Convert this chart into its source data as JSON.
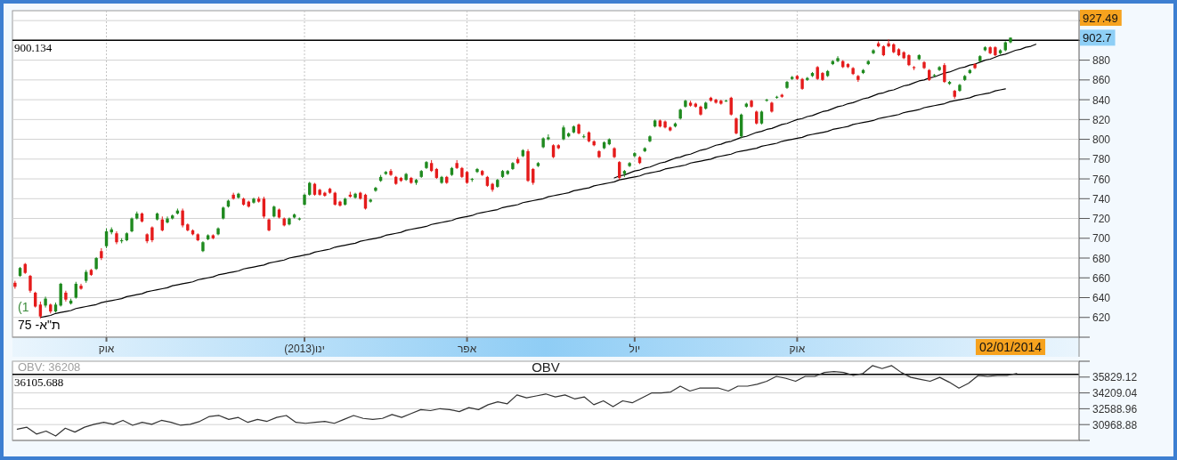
{
  "chart_data": [
    {
      "type": "candlestick",
      "grid": true,
      "ylim": [
        600,
        930
      ],
      "yticks": [
        {
          "value": 600,
          "label": null
        },
        620,
        640,
        660,
        680,
        700,
        720,
        740,
        760,
        780,
        800,
        820,
        840,
        860,
        880,
        {
          "value": 900,
          "label": null
        },
        {
          "value": 920,
          "label": null
        }
      ],
      "categories": [
        null,
        null,
        null,
        null,
        null,
        null,
        null,
        null,
        null,
        null,
        null,
        null,
        null,
        null,
        null,
        null,
        null,
        null,
        "אוק",
        null,
        null,
        null,
        null,
        null,
        null,
        null,
        null,
        null,
        null,
        null,
        null,
        null,
        null,
        null,
        null,
        null,
        null,
        null,
        null,
        null,
        null,
        null,
        null,
        null,
        null,
        null,
        null,
        null,
        null,
        null,
        null,
        null,
        null,
        null,
        null,
        null,
        null,
        "(2013)ינו",
        null,
        null,
        null,
        null,
        null,
        null,
        null,
        null,
        null,
        null,
        null,
        null,
        null,
        null,
        null,
        null,
        null,
        null,
        null,
        null,
        null,
        null,
        null,
        null,
        null,
        null,
        null,
        null,
        null,
        null,
        null,
        "אפר",
        null,
        null,
        null,
        null,
        null,
        null,
        null,
        null,
        null,
        null,
        null,
        null,
        null,
        null,
        null,
        null,
        null,
        null,
        null,
        null,
        null,
        null,
        null,
        null,
        null,
        null,
        null,
        null,
        null,
        null,
        null,
        null,
        "יול",
        null,
        null,
        null,
        null,
        null,
        null,
        null,
        null,
        null,
        null,
        null,
        null,
        null,
        null,
        null,
        null,
        null,
        null,
        null,
        null,
        null,
        null,
        null,
        null,
        null,
        null,
        null,
        null,
        null,
        null,
        null,
        "אוק",
        null,
        null,
        null,
        null,
        null,
        null,
        null,
        null,
        null,
        null,
        null,
        null,
        null,
        null,
        null,
        null,
        null,
        null,
        null,
        null,
        null,
        null,
        null,
        null,
        null,
        null,
        null,
        null,
        null,
        null,
        null,
        null,
        null,
        null,
        null,
        null,
        null,
        null,
        null,
        null,
        null,
        null,
        null,
        null,
        null,
        null,
        null,
        null,
        null,
        null,
        null,
        null,
        null,
        null,
        null
      ],
      "ohlc": [
        [
          655,
          657,
          649,
          651
        ],
        [
          662,
          671,
          661,
          670
        ],
        [
          674,
          675,
          664,
          665
        ],
        [
          662,
          663,
          645,
          647
        ],
        [
          645,
          646,
          630,
          631
        ],
        [
          633,
          636,
          619,
          621
        ],
        [
          632,
          641,
          630,
          639
        ],
        [
          633,
          634,
          624,
          626
        ],
        [
          626,
          635,
          625,
          633
        ],
        [
          632,
          655,
          631,
          654
        ],
        [
          645,
          647,
          636,
          638
        ],
        [
          634,
          639,
          633,
          637
        ],
        [
          640,
          656,
          639,
          654
        ],
        [
          652,
          654,
          648,
          649
        ],
        [
          657,
          668,
          655,
          666
        ],
        [
          668,
          669,
          662,
          663
        ],
        [
          669,
          681,
          668,
          680
        ],
        [
          687,
          690,
          678,
          680
        ],
        [
          692,
          710,
          690,
          707
        ],
        [
          706,
          711,
          704,
          709
        ],
        [
          705,
          707,
          694,
          696
        ],
        [
          697,
          700,
          695,
          698
        ],
        [
          698,
          706,
          697,
          705
        ],
        [
          707,
          721,
          706,
          720
        ],
        [
          720,
          727,
          719,
          725
        ],
        [
          725,
          726,
          716,
          717
        ],
        [
          704,
          705,
          695,
          697
        ],
        [
          711,
          712,
          696,
          698
        ],
        [
          719,
          726,
          718,
          725
        ],
        [
          719,
          722,
          707,
          708
        ],
        [
          716,
          722,
          715,
          720
        ],
        [
          720,
          724,
          719,
          723
        ],
        [
          725,
          730,
          724,
          728
        ],
        [
          728,
          730,
          711,
          713
        ],
        [
          714,
          715,
          707,
          708
        ],
        [
          708,
          709,
          703,
          704
        ],
        [
          704,
          705,
          697,
          698
        ],
        [
          687,
          697,
          686,
          696
        ],
        [
          699,
          704,
          698,
          703
        ],
        [
          703,
          704,
          699,
          700
        ],
        [
          704,
          711,
          703,
          710
        ],
        [
          720,
          732,
          719,
          731
        ],
        [
          732,
          739,
          731,
          738
        ],
        [
          744,
          746,
          739,
          740
        ],
        [
          741,
          746,
          740,
          745
        ],
        [
          740,
          741,
          733,
          734
        ],
        [
          737,
          738,
          731,
          732
        ],
        [
          736,
          741,
          735,
          740
        ],
        [
          740,
          742,
          736,
          737
        ],
        [
          740,
          742,
          720,
          722
        ],
        [
          719,
          720,
          707,
          708
        ],
        [
          722,
          733,
          721,
          732
        ],
        [
          729,
          730,
          720,
          721
        ],
        [
          720,
          721,
          712,
          713
        ],
        [
          714,
          721,
          713,
          720
        ],
        [
          721,
          725,
          720,
          724
        ],
        [
          719,
          721,
          718,
          720
        ],
        [
          734,
          745,
          733,
          744
        ],
        [
          744,
          757,
          743,
          756
        ],
        [
          755,
          756,
          743,
          744
        ],
        [
          749,
          750,
          743,
          744
        ],
        [
          746,
          747,
          742,
          743
        ],
        [
          750,
          751,
          745,
          746
        ],
        [
          746,
          747,
          733,
          734
        ],
        [
          737,
          738,
          732,
          733
        ],
        [
          734,
          741,
          733,
          740
        ],
        [
          744,
          747,
          741,
          742
        ],
        [
          741,
          746,
          740,
          745
        ],
        [
          746,
          747,
          739,
          740
        ],
        [
          744,
          745,
          729,
          730
        ],
        [
          737,
          740,
          736,
          739
        ],
        [
          748,
          752,
          747,
          751
        ],
        [
          758,
          764,
          757,
          762
        ],
        [
          765,
          768,
          764,
          767
        ],
        [
          768,
          770,
          763,
          764
        ],
        [
          762,
          763,
          754,
          755
        ],
        [
          761,
          762,
          757,
          758
        ],
        [
          759,
          766,
          758,
          765
        ],
        [
          761,
          762,
          755,
          756
        ],
        [
          756,
          760,
          754,
          759
        ],
        [
          762,
          769,
          761,
          768
        ],
        [
          771,
          778,
          770,
          777
        ],
        [
          776,
          779,
          767,
          768
        ],
        [
          770,
          771,
          760,
          761
        ],
        [
          756,
          763,
          755,
          762
        ],
        [
          762,
          763,
          755,
          756
        ],
        [
          764,
          772,
          763,
          771
        ],
        [
          776,
          779,
          770,
          771
        ],
        [
          771,
          772,
          761,
          762
        ],
        [
          767,
          768,
          755,
          756
        ],
        [
          759,
          761,
          757,
          760
        ],
        [
          767,
          771,
          766,
          770
        ],
        [
          768,
          769,
          763,
          764
        ],
        [
          762,
          763,
          752,
          753
        ],
        [
          755,
          756,
          747,
          749
        ],
        [
          752,
          760,
          751,
          759
        ],
        [
          762,
          769,
          761,
          768
        ],
        [
          765,
          769,
          764,
          768
        ],
        [
          770,
          777,
          769,
          776
        ],
        [
          780,
          782,
          775,
          776
        ],
        [
          783,
          790,
          782,
          789
        ],
        [
          788,
          790,
          757,
          758
        ],
        [
          770,
          771,
          754,
          756
        ],
        [
          773,
          777,
          772,
          776
        ],
        [
          792,
          802,
          791,
          801
        ],
        [
          800,
          805,
          799,
          802
        ],
        [
          794,
          795,
          781,
          782
        ],
        [
          794,
          795,
          790,
          791
        ],
        [
          800,
          814,
          799,
          812
        ],
        [
          803,
          807,
          802,
          806
        ],
        [
          807,
          814,
          806,
          813
        ],
        [
          815,
          816,
          805,
          806
        ],
        [
          803,
          805,
          801,
          803
        ],
        [
          807,
          808,
          797,
          798
        ],
        [
          798,
          799,
          793,
          794
        ],
        [
          788,
          789,
          781,
          782
        ],
        [
          791,
          798,
          790,
          797
        ],
        [
          795,
          801,
          794,
          800
        ],
        [
          791,
          792,
          781,
          782
        ],
        [
          777,
          778,
          759,
          761
        ],
        [
          765,
          769,
          762,
          768
        ],
        [
          773,
          777,
          772,
          776
        ],
        [
          783,
          787,
          782,
          786
        ],
        [
          782,
          783,
          775,
          776
        ],
        [
          788,
          792,
          787,
          791
        ],
        [
          798,
          804,
          797,
          803
        ],
        [
          813,
          820,
          812,
          819
        ],
        [
          819,
          820,
          812,
          813
        ],
        [
          818,
          819,
          811,
          812
        ],
        [
          812,
          813,
          808,
          809
        ],
        [
          813,
          817,
          812,
          816
        ],
        [
          821,
          831,
          820,
          830
        ],
        [
          833,
          840,
          832,
          839
        ],
        [
          837,
          839,
          833,
          834
        ],
        [
          836,
          837,
          832,
          833
        ],
        [
          833,
          834,
          824,
          825
        ],
        [
          831,
          838,
          830,
          837
        ],
        [
          842,
          843,
          838,
          839
        ],
        [
          840,
          841,
          836,
          837
        ],
        [
          839,
          840,
          835,
          836
        ],
        [
          839,
          840,
          838,
          839
        ],
        [
          842,
          843,
          824,
          825
        ],
        [
          821,
          822,
          805,
          806
        ],
        [
          803,
          826,
          801,
          825
        ],
        [
          833,
          837,
          832,
          836
        ],
        [
          839,
          840,
          832,
          833
        ],
        [
          828,
          829,
          815,
          816
        ],
        [
          816,
          829,
          815,
          828
        ],
        [
          839,
          841,
          838,
          840
        ],
        [
          837,
          838,
          827,
          828
        ],
        [
          842,
          844,
          841,
          843
        ],
        [
          845,
          846,
          842,
          843
        ],
        [
          852,
          859,
          851,
          858
        ],
        [
          861,
          864,
          860,
          863
        ],
        [
          864,
          865,
          860,
          861
        ],
        [
          861,
          862,
          850,
          851
        ],
        [
          860,
          863,
          859,
          862
        ],
        [
          864,
          868,
          863,
          867
        ],
        [
          873,
          874,
          860,
          861
        ],
        [
          867,
          868,
          859,
          860
        ],
        [
          864,
          870,
          863,
          869
        ],
        [
          876,
          880,
          875,
          879
        ],
        [
          879,
          884,
          878,
          882
        ],
        [
          879,
          880,
          872,
          873
        ],
        [
          876,
          877,
          872,
          873
        ],
        [
          872,
          873,
          865,
          866
        ],
        [
          864,
          865,
          858,
          860
        ],
        [
          867,
          871,
          866,
          870
        ],
        [
          876,
          880,
          875,
          879
        ],
        [
          887,
          891,
          886,
          890
        ],
        [
          897,
          899,
          893,
          894
        ],
        [
          894,
          895,
          884,
          885
        ],
        [
          897,
          901,
          893,
          894
        ],
        [
          896,
          897,
          887,
          888
        ],
        [
          891,
          892,
          884,
          885
        ],
        [
          888,
          889,
          881,
          882
        ],
        [
          885,
          886,
          874,
          875
        ],
        [
          873,
          874,
          870,
          872
        ],
        [
          881,
          886,
          880,
          885
        ],
        [
          878,
          879,
          871,
          872
        ],
        [
          870,
          871,
          859,
          860
        ],
        [
          864,
          866,
          863,
          865
        ],
        [
          870,
          874,
          869,
          873
        ],
        [
          875,
          877,
          857,
          858
        ],
        [
          856,
          859,
          855,
          858
        ],
        [
          849,
          850,
          841,
          843
        ],
        [
          849,
          856,
          848,
          855
        ],
        [
          860,
          865,
          859,
          864
        ],
        [
          867,
          871,
          866,
          870
        ],
        [
          876,
          877,
          871,
          872
        ],
        [
          879,
          885,
          878,
          884
        ],
        [
          890,
          894,
          889,
          893
        ],
        [
          893,
          894,
          886,
          887
        ],
        [
          893,
          894,
          884,
          885
        ],
        [
          887,
          891,
          886,
          890
        ],
        [
          890,
          899,
          889,
          898
        ],
        [
          898,
          903,
          897,
          902.7
        ],
        null,
        null,
        null,
        null,
        null,
        null,
        null,
        null,
        null,
        null,
        null,
        null,
        null
      ],
      "series": [
        {
          "type": "line",
          "color": "#000000",
          "values": [
            null,
            null,
            null,
            null,
            null,
            620,
            621,
            622,
            624,
            625,
            626,
            627,
            629,
            630,
            631,
            632,
            633,
            635,
            636,
            637,
            638,
            639,
            641,
            642,
            643,
            644,
            646,
            647,
            648,
            649,
            650,
            652,
            653,
            654,
            655,
            656,
            658,
            659,
            660,
            661,
            663,
            664,
            665,
            666,
            667,
            669,
            670,
            671,
            672,
            673,
            675,
            676,
            677,
            678,
            680,
            681,
            682,
            683,
            684,
            686,
            687,
            688,
            689,
            691,
            692,
            693,
            694,
            695,
            697,
            698,
            699,
            700,
            701,
            703,
            704,
            705,
            706,
            708,
            709,
            710,
            711,
            712,
            714,
            715,
            716,
            717,
            718,
            720,
            721,
            722,
            723,
            725,
            726,
            727,
            728,
            729,
            731,
            732,
            733,
            734,
            736,
            737,
            738,
            739,
            740,
            742,
            743,
            744,
            745,
            746,
            748,
            749,
            750,
            751,
            753,
            754,
            755,
            756,
            757,
            759,
            760,
            761,
            762,
            763,
            765,
            766,
            767,
            768,
            770,
            771,
            772,
            773,
            774,
            776,
            777,
            778,
            779,
            780,
            782,
            783,
            784,
            785,
            787,
            788,
            789,
            790,
            791,
            793,
            794,
            795,
            796,
            798,
            799,
            800,
            801,
            802,
            804,
            805,
            806,
            807,
            808,
            810,
            811,
            812,
            813,
            815,
            816,
            817,
            818,
            819,
            821,
            822,
            823,
            824,
            825,
            827,
            828,
            829,
            830,
            832,
            833,
            834,
            835,
            836,
            838,
            839,
            840,
            841,
            842,
            844,
            845,
            846,
            847,
            849,
            850,
            851,
            null,
            null,
            null,
            null,
            null,
            null,
            null,
            null,
            null,
            null,
            null,
            null,
            null,
            null
          ]
        },
        {
          "type": "line",
          "color": "#000000",
          "values": [
            null,
            null,
            null,
            null,
            null,
            null,
            null,
            null,
            null,
            null,
            null,
            null,
            null,
            null,
            null,
            null,
            null,
            null,
            null,
            null,
            null,
            null,
            null,
            null,
            null,
            null,
            null,
            null,
            null,
            null,
            null,
            null,
            null,
            null,
            null,
            null,
            null,
            null,
            null,
            null,
            null,
            null,
            null,
            null,
            null,
            null,
            null,
            null,
            null,
            null,
            null,
            null,
            null,
            null,
            null,
            null,
            null,
            null,
            null,
            null,
            null,
            null,
            null,
            null,
            null,
            null,
            null,
            null,
            null,
            null,
            null,
            null,
            null,
            null,
            null,
            null,
            null,
            null,
            null,
            null,
            null,
            null,
            null,
            null,
            null,
            null,
            null,
            null,
            null,
            null,
            null,
            null,
            null,
            null,
            null,
            null,
            null,
            null,
            null,
            null,
            null,
            null,
            null,
            null,
            null,
            null,
            null,
            null,
            null,
            null,
            null,
            null,
            null,
            null,
            null,
            null,
            null,
            null,
            761,
            763,
            764,
            766,
            768,
            769,
            771,
            772,
            774,
            776,
            777,
            779,
            781,
            782,
            784,
            785,
            787,
            789,
            790,
            792,
            794,
            795,
            797,
            798,
            800,
            802,
            803,
            805,
            807,
            808,
            810,
            811,
            813,
            815,
            816,
            818,
            820,
            821,
            823,
            824,
            826,
            828,
            829,
            831,
            833,
            834,
            836,
            837,
            839,
            841,
            842,
            844,
            846,
            847,
            849,
            850,
            852,
            854,
            855,
            857,
            859,
            860,
            862,
            863,
            865,
            867,
            868,
            870,
            872,
            873,
            875,
            876,
            878,
            880,
            881,
            883,
            885,
            886,
            888,
            890,
            891,
            893,
            894,
            896,
            null,
            null,
            null,
            null,
            null,
            null,
            null,
            null
          ]
        }
      ],
      "ref_lines": [
        {
          "axis": "y",
          "value": 900.134,
          "label": "900.134",
          "color": "#000000"
        }
      ],
      "annotations": [
        "927.49",
        "902.7",
        "02/01/2014",
        "ת\"א- 75",
        "(1"
      ]
    },
    {
      "type": "line",
      "title": "OBV",
      "grid": "y",
      "tick_labels": "y",
      "ylim": [
        29348.8,
        37449.2
      ],
      "yticks": [
        {
          "value": 29348.8,
          "label": null
        },
        30968.88,
        32588.96,
        34209.04,
        35829.12,
        {
          "value": 37449.2,
          "label": null
        }
      ],
      "categories": [
        null,
        null,
        null,
        null,
        null,
        null,
        null,
        null,
        null,
        null,
        null,
        null,
        null,
        null,
        null,
        null,
        null,
        null,
        null,
        null,
        null,
        null,
        null,
        null,
        null,
        null,
        null,
        null,
        null,
        null,
        null,
        null,
        null,
        null,
        null,
        null,
        null,
        null,
        null,
        null,
        null,
        null,
        null,
        null,
        null,
        null,
        null,
        null,
        null,
        null,
        null,
        null,
        null,
        null,
        null,
        null,
        null,
        null,
        null,
        null,
        null,
        null,
        null,
        null,
        null,
        null,
        null,
        null,
        null,
        null,
        null,
        null,
        null,
        null,
        null,
        null,
        null,
        null,
        null,
        null,
        null,
        null,
        null,
        null,
        null,
        null,
        null,
        null,
        null,
        null,
        null,
        null,
        null,
        null,
        null,
        null,
        null,
        null,
        null,
        null,
        null,
        null,
        null,
        null,
        null,
        null,
        null,
        null,
        null,
        null,
        null
      ],
      "series": [
        {
          "color": "#333333",
          "values": [
            30500,
            30700,
            30000,
            30300,
            29800,
            30600,
            30200,
            30700,
            31000,
            31200,
            31000,
            31400,
            30900,
            31200,
            31000,
            31400,
            31200,
            30900,
            31000,
            31300,
            31800,
            31900,
            31500,
            31700,
            31200,
            31500,
            31300,
            31700,
            31900,
            31200,
            31100,
            31200,
            31300,
            31100,
            31500,
            31900,
            31600,
            31500,
            31600,
            32000,
            31700,
            32100,
            32500,
            32400,
            32600,
            32500,
            32300,
            32700,
            32500,
            33000,
            33300,
            33100,
            34000,
            33700,
            33900,
            34100,
            33800,
            34000,
            33600,
            33800,
            33000,
            33400,
            32800,
            33400,
            33200,
            33700,
            34200,
            34200,
            34300,
            34900,
            34400,
            34700,
            34700,
            34700,
            34400,
            34900,
            34900,
            35100,
            35400,
            35900,
            35700,
            35400,
            35900,
            35900,
            36300,
            36400,
            36300,
            36000,
            36200,
            37000,
            36700,
            37000,
            36300,
            35800,
            35600,
            35400,
            35800,
            35300,
            34700,
            35200,
            36000,
            35900,
            36000,
            36000,
            36200,
            null,
            null,
            null,
            null,
            null,
            null
          ]
        }
      ],
      "ref_lines": [
        {
          "axis": "y",
          "value": 36105.688,
          "label": "36105.688",
          "color": "#000000"
        }
      ],
      "annotations": [
        "OBV: 36208"
      ]
    }
  ]
}
